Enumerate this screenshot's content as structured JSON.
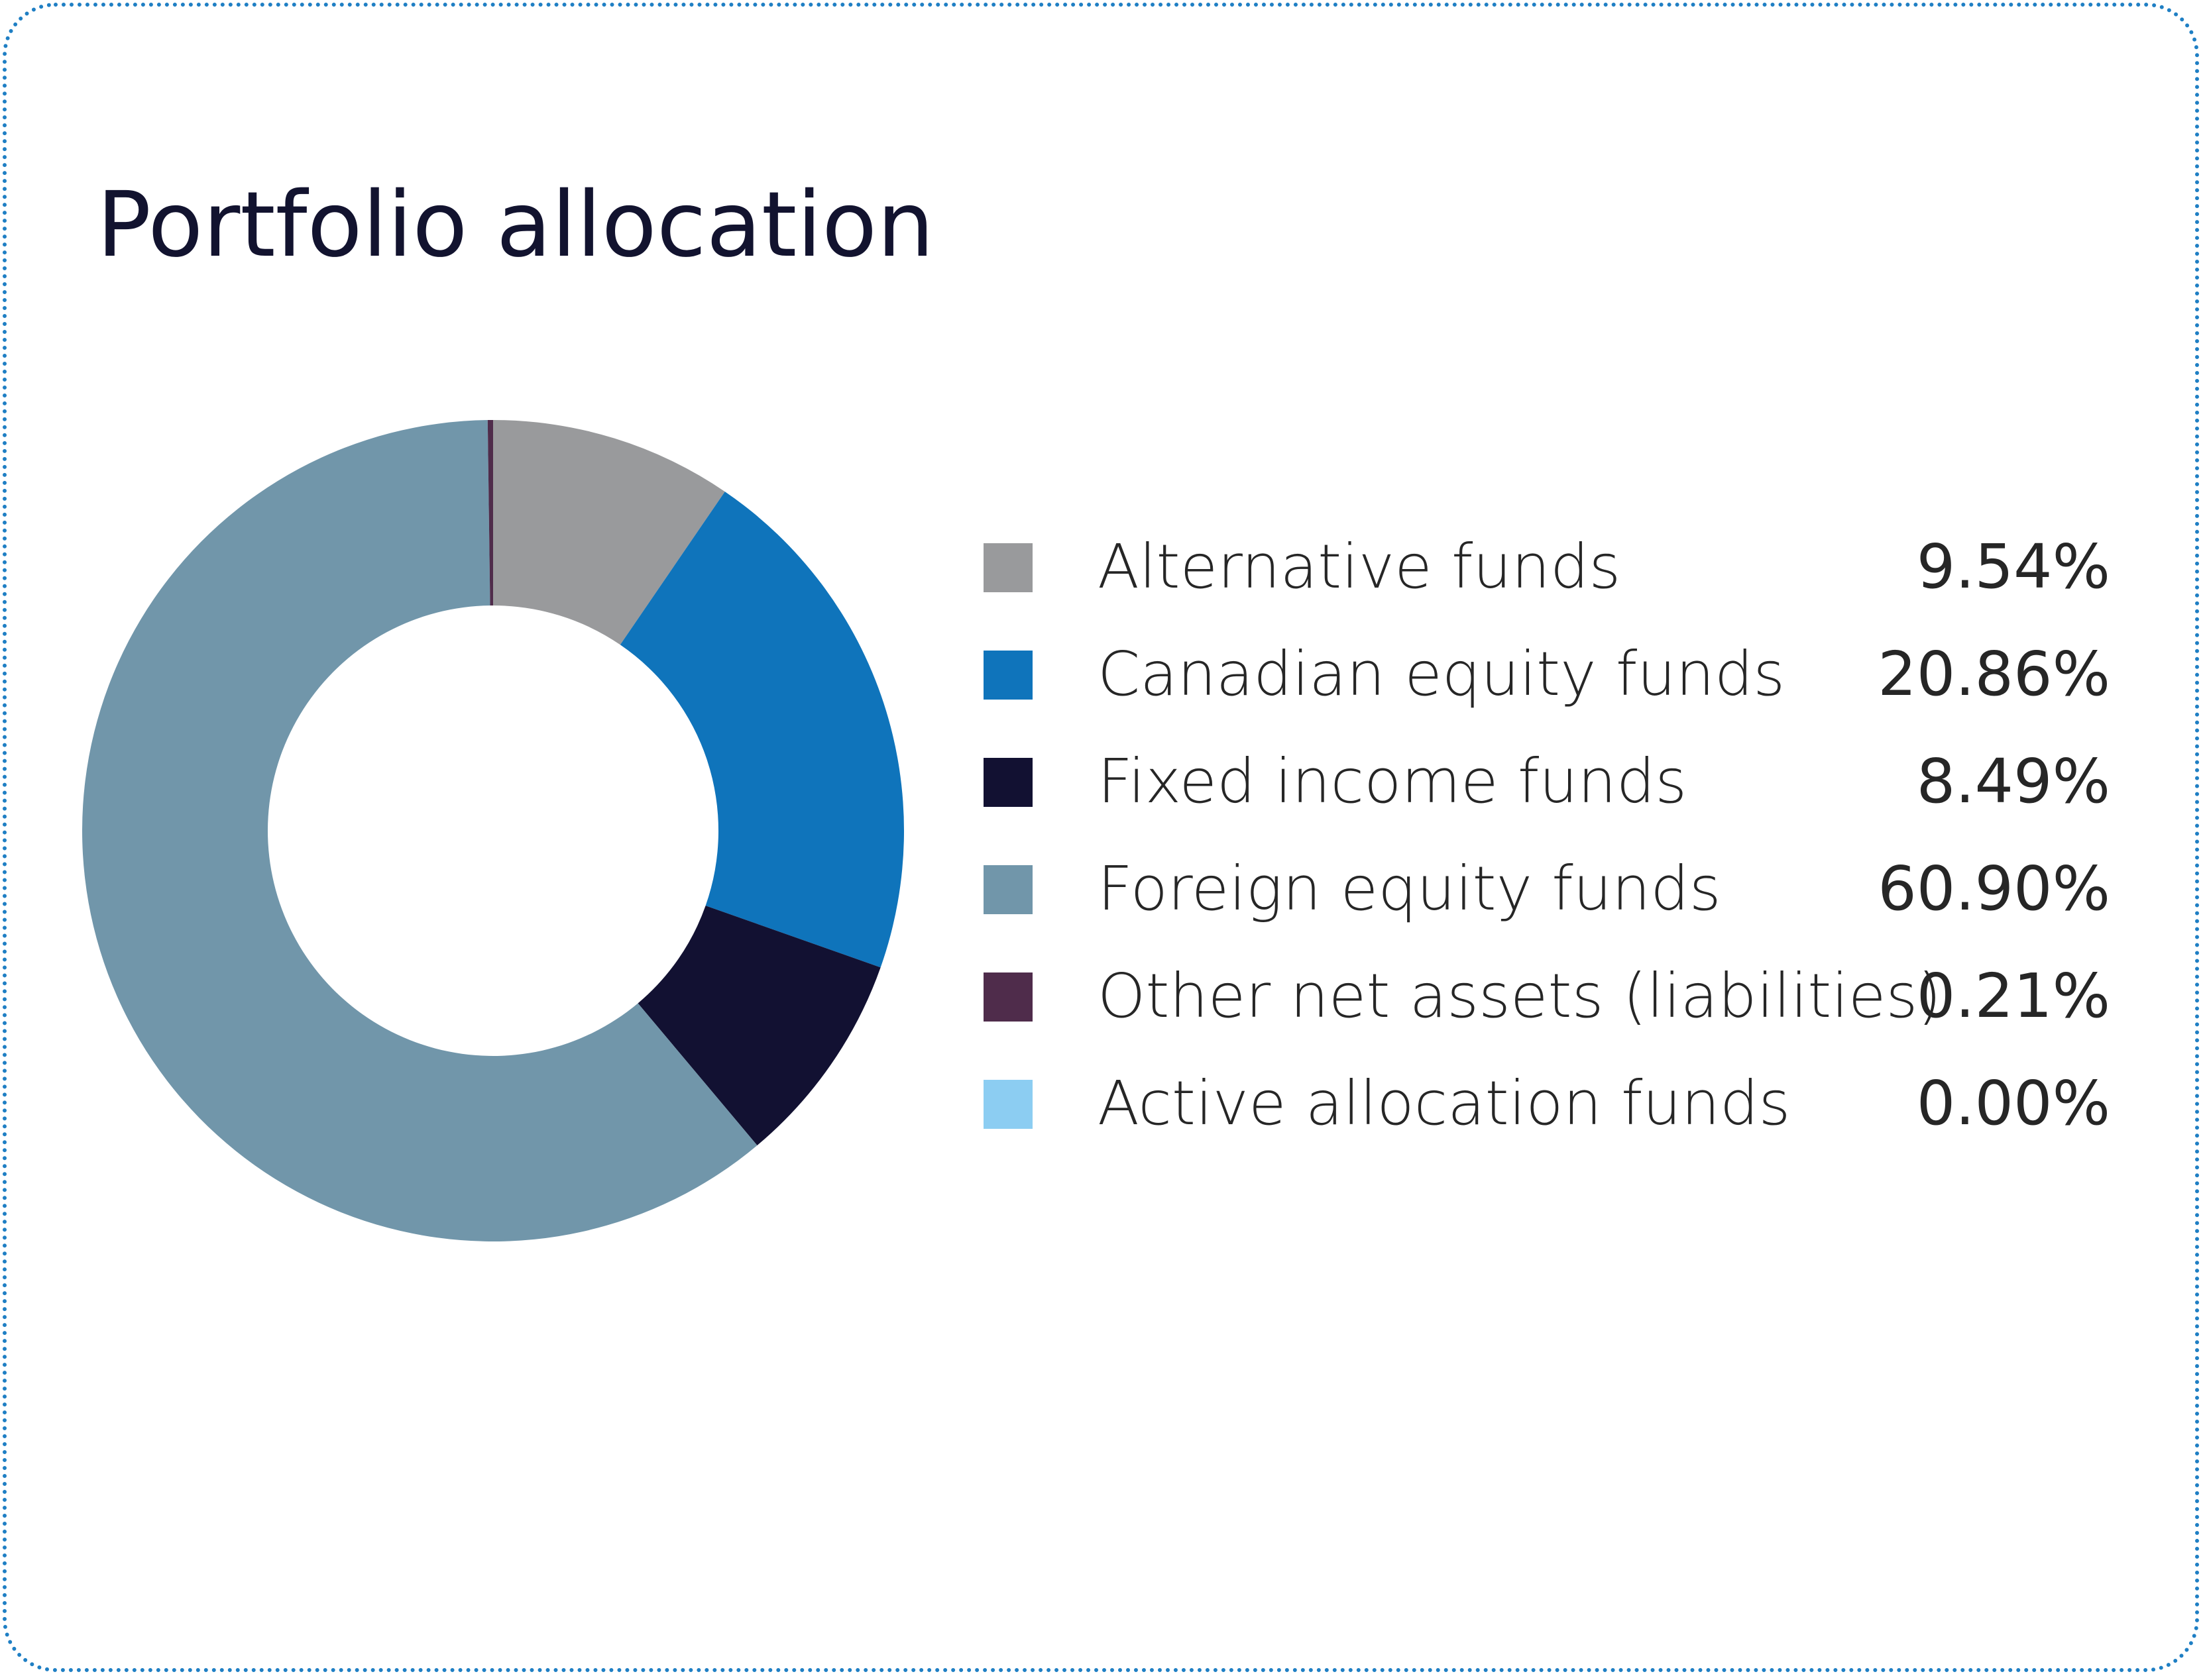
{
  "chart_data": {
    "type": "pie",
    "title": "Portfolio allocation",
    "categories": [
      "Alternative funds",
      "Canadian equity funds",
      "Fixed income funds",
      "Foreign equity funds",
      "Other net assets (liabilities)",
      "Active allocation funds"
    ],
    "values": [
      9.54,
      20.86,
      8.49,
      60.9,
      0.21,
      0.0
    ],
    "value_labels": [
      "9.54%",
      "20.86%",
      "8.49%",
      "60.90%",
      "0.21%",
      "0.00%"
    ],
    "colors": [
      "#999a9c",
      "#0f74bb",
      "#121132",
      "#7196aa",
      "#4f2c4b",
      "#8ccdf2"
    ],
    "donut": true,
    "legend_position": "right"
  }
}
